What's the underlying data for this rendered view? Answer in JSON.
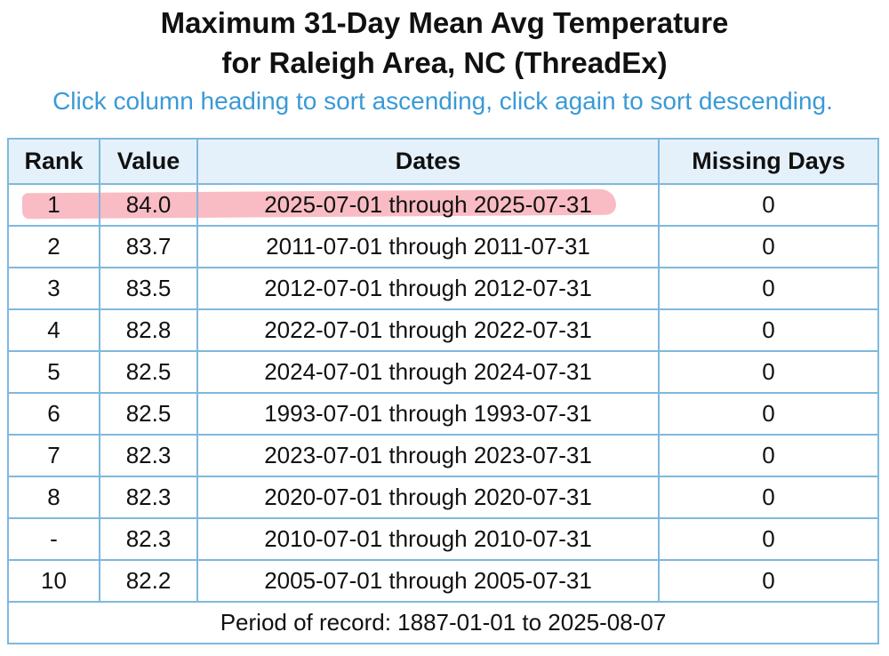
{
  "title_line1": "Maximum 31-Day Mean Avg Temperature",
  "title_line2": "for Raleigh Area, NC (ThreadEx)",
  "instructions": "Click column heading to sort ascending, click again to sort descending.",
  "table": {
    "headers": {
      "rank": "Rank",
      "value": "Value",
      "dates": "Dates",
      "missing": "Missing Days"
    },
    "rows": [
      {
        "rank": "1",
        "value": "84.0",
        "dates": "2025-07-01 through 2025-07-31",
        "missing": "0"
      },
      {
        "rank": "2",
        "value": "83.7",
        "dates": "2011-07-01 through 2011-07-31",
        "missing": "0"
      },
      {
        "rank": "3",
        "value": "83.5",
        "dates": "2012-07-01 through 2012-07-31",
        "missing": "0"
      },
      {
        "rank": "4",
        "value": "82.8",
        "dates": "2022-07-01 through 2022-07-31",
        "missing": "0"
      },
      {
        "rank": "5",
        "value": "82.5",
        "dates": "2024-07-01 through 2024-07-31",
        "missing": "0"
      },
      {
        "rank": "6",
        "value": "82.5",
        "dates": "1993-07-01 through 1993-07-31",
        "missing": "0"
      },
      {
        "rank": "7",
        "value": "82.3",
        "dates": "2023-07-01 through 2023-07-31",
        "missing": "0"
      },
      {
        "rank": "8",
        "value": "82.3",
        "dates": "2020-07-01 through 2020-07-31",
        "missing": "0"
      },
      {
        "rank": "-",
        "value": "82.3",
        "dates": "2010-07-01 through 2010-07-31",
        "missing": "0"
      },
      {
        "rank": "10",
        "value": "82.2",
        "dates": "2005-07-01 through 2005-07-31",
        "missing": "0"
      }
    ],
    "footer": "Period of record: 1887-01-01 to 2025-08-07"
  },
  "highlight_color": "#f05f73"
}
